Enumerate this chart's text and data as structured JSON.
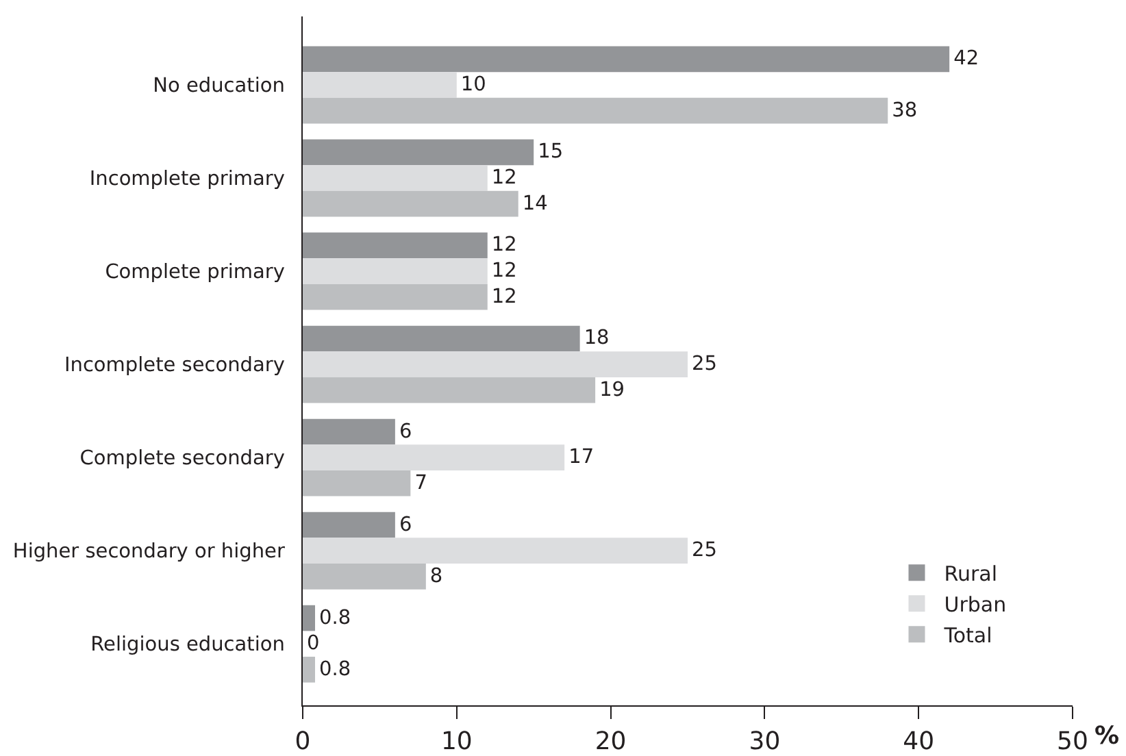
{
  "chart_data": {
    "type": "bar",
    "orientation": "horizontal",
    "xlabel": "%",
    "categories": [
      "No education",
      "Incomplete primary",
      "Complete primary",
      "Incomplete secondary",
      "Complete secondary",
      "Higher secondary or higher",
      "Religious education"
    ],
    "series": [
      {
        "name": "Rural",
        "color": "#939598",
        "values": [
          42,
          15,
          12,
          18,
          6,
          6,
          0.8
        ]
      },
      {
        "name": "Urban",
        "color": "#dcdddf",
        "values": [
          10,
          12,
          12,
          25,
          17,
          25,
          0
        ]
      },
      {
        "name": "Total",
        "color": "#bcbec0",
        "values": [
          38,
          14,
          12,
          19,
          7,
          8,
          0.8
        ]
      }
    ],
    "xlim": [
      0,
      50
    ],
    "xticks": [
      0,
      10,
      20,
      30,
      40,
      50
    ],
    "data_labels": true,
    "grid": false,
    "legend": "bottom right"
  }
}
